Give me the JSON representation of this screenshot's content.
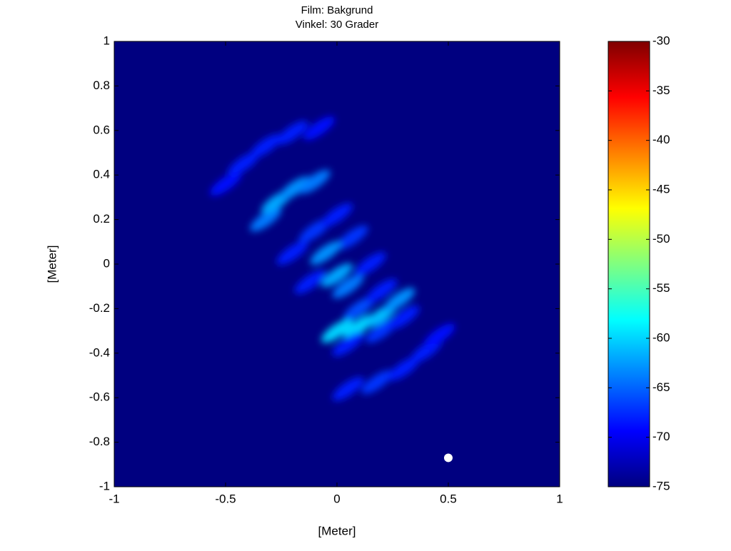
{
  "chart_data": {
    "type": "heatmap",
    "title": [
      "Film: Bakgrund",
      "Vinkel: 30 Grader"
    ],
    "xlabel": "[Meter]",
    "ylabel": "[Meter]",
    "xlim": [
      -1,
      1
    ],
    "ylim": [
      -1,
      1
    ],
    "xticks": [
      -1,
      -0.5,
      0,
      0.5,
      1
    ],
    "yticks": [
      -1,
      -0.8,
      -0.6,
      -0.4,
      -0.2,
      0,
      0.2,
      0.4,
      0.6,
      0.8,
      1
    ],
    "clim": [
      -75,
      -30
    ],
    "cticks": [
      -75,
      -70,
      -65,
      -60,
      -55,
      -50,
      -45,
      -40,
      -35,
      -30
    ],
    "colormap": "jet",
    "x": [
      -0.5,
      -0.42,
      -0.32,
      -0.2,
      -0.08,
      -0.32,
      -0.27,
      -0.19,
      -0.1,
      -0.2,
      -0.1,
      0,
      0.07,
      -0.05,
      0,
      0.05,
      0.15,
      0.1,
      -0.12,
      0.2,
      0,
      0.1,
      0.2,
      0.28,
      0.05,
      0.2,
      0.3,
      0.05,
      0.18,
      0.3,
      0.4,
      0.46
    ],
    "y": [
      0.36,
      0.45,
      0.53,
      0.59,
      0.61,
      0.2,
      0.28,
      0.34,
      0.37,
      0.05,
      0.15,
      0.22,
      0.12,
      0.05,
      -0.05,
      -0.1,
      0,
      -0.2,
      -0.08,
      -0.12,
      -0.3,
      -0.28,
      -0.23,
      -0.16,
      -0.36,
      -0.3,
      -0.24,
      -0.56,
      -0.53,
      -0.47,
      -0.39,
      -0.32
    ],
    "values": [
      -69,
      -68,
      -68,
      -68,
      -69,
      -64,
      -62,
      -63,
      -64,
      -68,
      -67,
      -68,
      -67,
      -63,
      -62,
      -64,
      -68,
      -66,
      -68,
      -68,
      -60,
      -60,
      -61,
      -63,
      -68,
      -67,
      -68,
      -68,
      -67,
      -68,
      -68,
      -69
    ],
    "marker": {
      "x": 0.5,
      "y": -0.87,
      "color": "#ffffff"
    }
  }
}
